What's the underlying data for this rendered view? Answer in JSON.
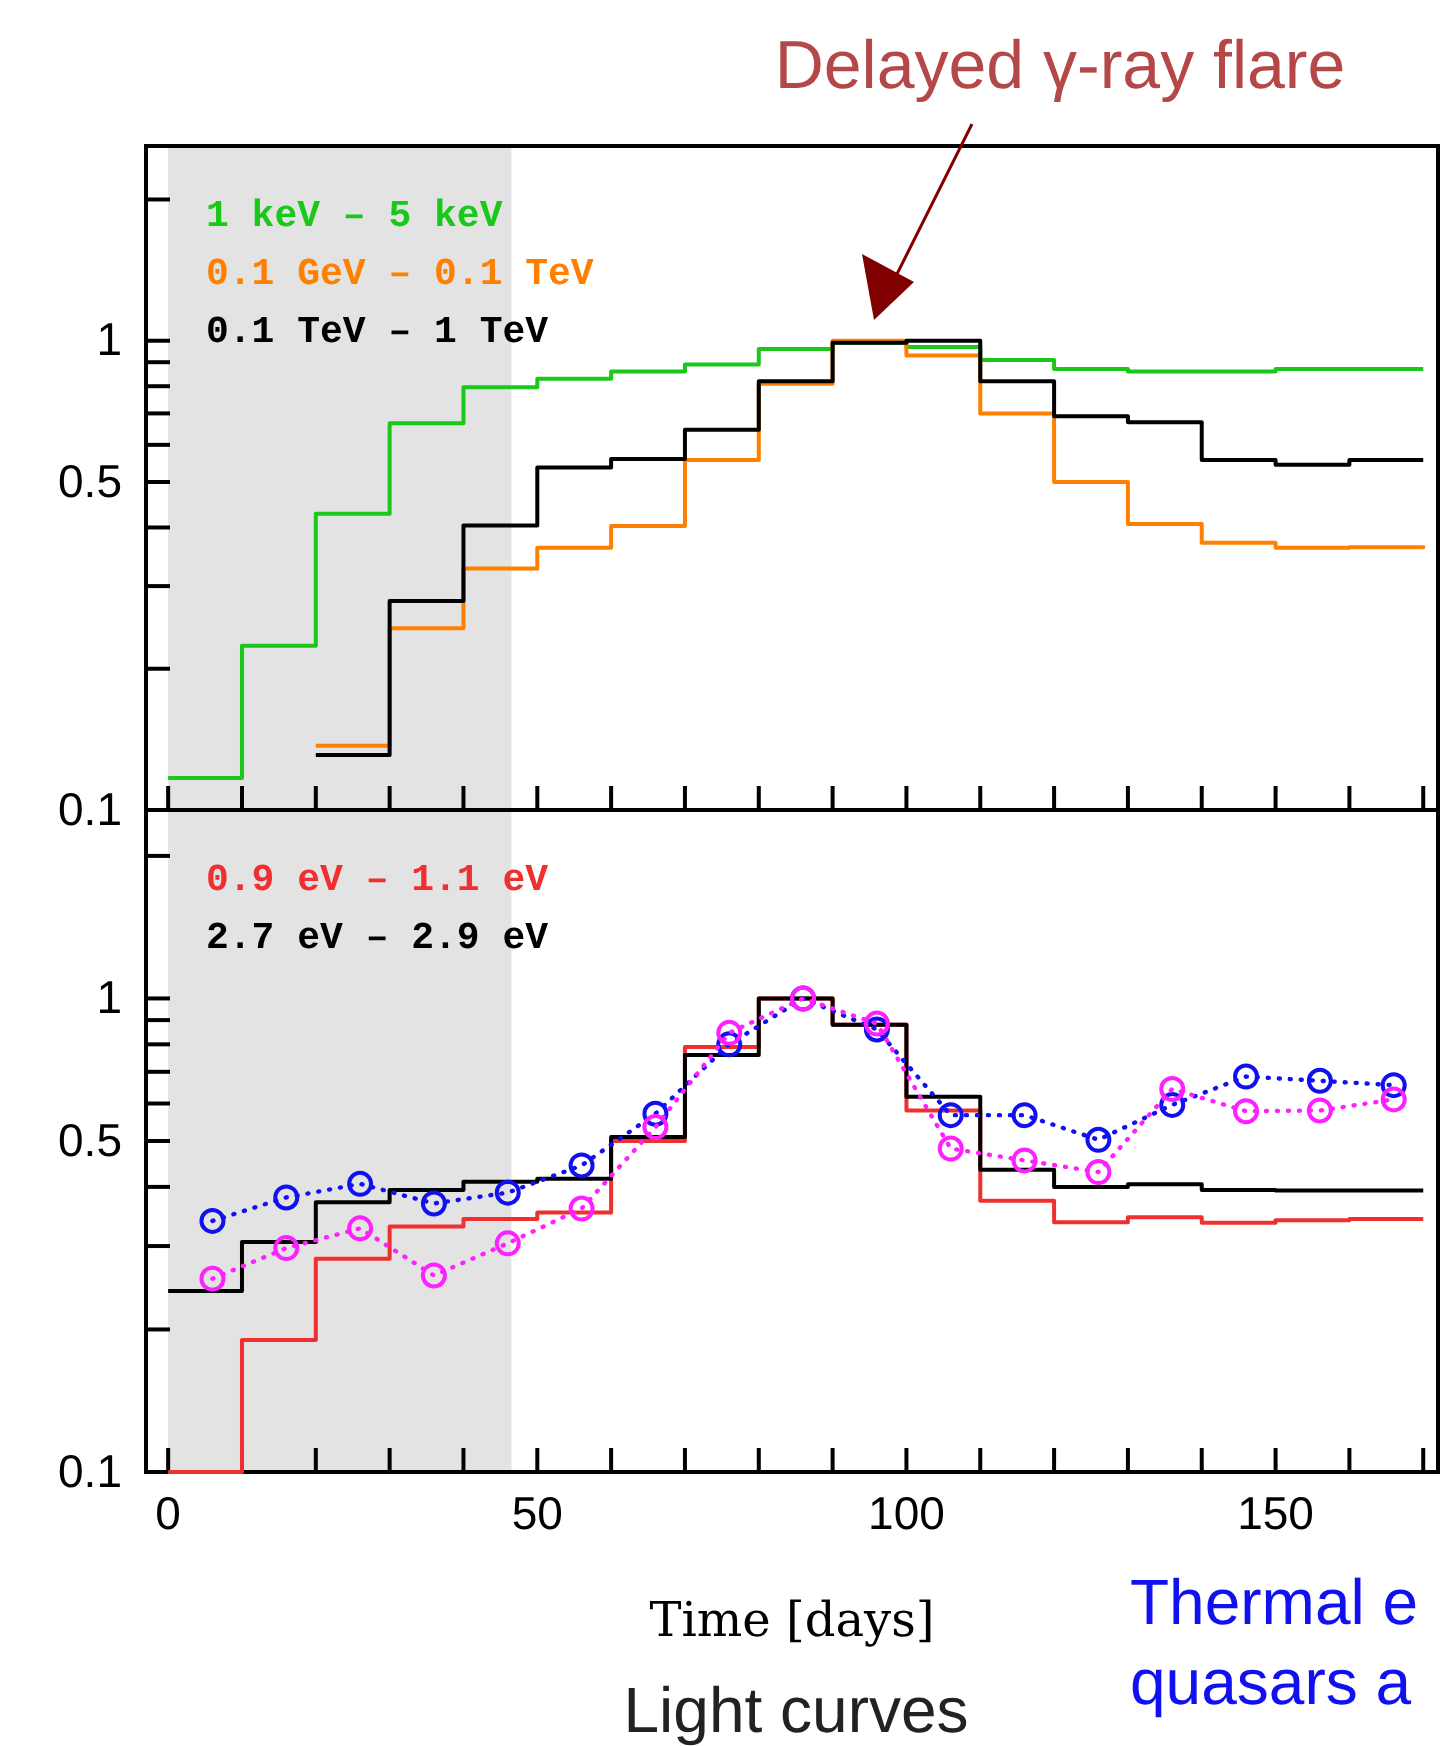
{
  "chart_data": [
    {
      "type": "step",
      "x": [
        0,
        10,
        20,
        30,
        40,
        50,
        60,
        70,
        80,
        90,
        100,
        110,
        120,
        130,
        140,
        150,
        160,
        170
      ],
      "log": "y",
      "legend": "top left",
      "tick_labels": "y",
      "grid": false,
      "series": [
        {
          "name": "1 keV – 5  keV",
          "color": "#19c819",
          "values": [
            0.117,
            0.224,
            0.428,
            0.667,
            0.796,
            0.83,
            0.86,
            0.89,
            0.96,
            0.99,
            0.97,
            0.91,
            0.87,
            0.86,
            0.86,
            0.87,
            0.87,
            0.87
          ]
        },
        {
          "name": "0.1 GeV – 0.1 TeV",
          "color": "#ff8000",
          "values": [
            null,
            null,
            0.137,
            0.244,
            0.327,
            0.362,
            0.403,
            0.557,
            0.81,
            1.0,
            0.93,
            0.7,
            0.5,
            0.407,
            0.371,
            0.362,
            0.363,
            0.366
          ]
        },
        {
          "name": "0.1 TeV – 1 TeV",
          "color": "#000000",
          "values": [
            null,
            null,
            0.131,
            0.279,
            0.404,
            0.537,
            0.56,
            0.646,
            0.82,
            0.99,
            1.0,
            0.82,
            0.69,
            0.67,
            0.557,
            0.544,
            0.557,
            0.557
          ]
        }
      ],
      "xlim": [
        -3,
        172
      ],
      "ylim": [
        0.1,
        2.6
      ],
      "xticks": [
        0,
        {
          "value": 10,
          "label": null
        },
        {
          "value": 20,
          "label": null
        },
        {
          "value": 30,
          "label": null
        },
        {
          "value": 40,
          "label": null
        },
        50,
        {
          "value": 60,
          "label": null
        },
        {
          "value": 70,
          "label": null
        },
        {
          "value": 80,
          "label": null
        },
        {
          "value": 90,
          "label": null
        },
        100,
        {
          "value": 110,
          "label": null
        },
        {
          "value": 120,
          "label": null
        },
        {
          "value": 130,
          "label": null
        },
        {
          "value": 140,
          "label": null
        },
        150,
        {
          "value": 160,
          "label": null
        },
        {
          "value": 170,
          "label": null
        }
      ],
      "yticks": [
        0.1,
        {
          "value": 0.2,
          "label": null
        },
        {
          "value": 0.3,
          "label": null
        },
        {
          "value": 0.4,
          "label": null
        },
        0.5,
        {
          "value": 0.6,
          "label": null
        },
        {
          "value": 0.7,
          "label": null
        },
        {
          "value": 0.8,
          "label": null
        },
        {
          "value": 0.9,
          "label": null
        },
        1,
        {
          "value": 2,
          "label": null
        }
      ],
      "bands": [
        {
          "axis": "x",
          "from": 0,
          "to": 46.5,
          "color": "#e3e3e3"
        }
      ],
      "annotations": [
        "Delayed γ-ray flare"
      ]
    },
    {
      "type": "step",
      "x": [
        0,
        10,
        20,
        30,
        40,
        50,
        60,
        70,
        80,
        90,
        100,
        110,
        120,
        130,
        140,
        150,
        160,
        170
      ],
      "log": "y",
      "legend": "top left",
      "grid": false,
      "xlabel": "Time [days]",
      "series": [
        {
          "name": "0.9 eV – 1.1 eV",
          "color": "#f03030",
          "values": [
            0.1,
            0.19,
            0.282,
            0.33,
            0.342,
            0.353,
            0.5,
            0.79,
            1.0,
            0.88,
            0.58,
            0.374,
            0.337,
            0.345,
            0.336,
            0.34,
            0.342,
            0.342
          ]
        },
        {
          "name": "2.7 eV – 2.9 eV",
          "color": "#000000",
          "values": [
            0.241,
            0.306,
            0.371,
            0.394,
            0.41,
            0.416,
            0.51,
            0.76,
            1.0,
            0.88,
            0.62,
            0.435,
            0.4,
            0.405,
            0.394,
            0.393,
            0.393,
            0.393
          ]
        },
        {
          "type": "line",
          "marker": "circle",
          "line_style": "dotted",
          "color": "#1010f0",
          "x": [
            6,
            16,
            26,
            36,
            46,
            56,
            66,
            76,
            86,
            96,
            106,
            116,
            126,
            136,
            146,
            156,
            166
          ],
          "values": [
            0.339,
            0.38,
            0.406,
            0.369,
            0.389,
            0.444,
            0.571,
            0.8,
            1.0,
            0.86,
            0.567,
            0.567,
            0.503,
            0.596,
            0.684,
            0.67,
            0.656
          ]
        },
        {
          "type": "line",
          "marker": "circle",
          "line_style": "dotted",
          "color": "#ff20ff",
          "x": [
            6,
            16,
            26,
            36,
            46,
            56,
            66,
            76,
            86,
            96,
            106,
            116,
            126,
            136,
            146,
            156,
            166
          ],
          "values": [
            0.256,
            0.297,
            0.327,
            0.26,
            0.304,
            0.36,
            0.535,
            0.846,
            1.0,
            0.885,
            0.482,
            0.455,
            0.43,
            0.644,
            0.578,
            0.58,
            0.612
          ]
        }
      ],
      "xlim": [
        -3,
        172
      ],
      "ylim": [
        0.1,
        2.5
      ],
      "xticks": [
        0,
        {
          "value": 10,
          "label": null
        },
        {
          "value": 20,
          "label": null
        },
        {
          "value": 30,
          "label": null
        },
        {
          "value": 40,
          "label": null
        },
        50,
        {
          "value": 60,
          "label": null
        },
        {
          "value": 70,
          "label": null
        },
        {
          "value": 80,
          "label": null
        },
        {
          "value": 90,
          "label": null
        },
        100,
        {
          "value": 110,
          "label": null
        },
        {
          "value": 120,
          "label": null
        },
        {
          "value": 130,
          "label": null
        },
        {
          "value": 140,
          "label": null
        },
        150,
        {
          "value": 160,
          "label": null
        },
        {
          "value": 170,
          "label": null
        }
      ],
      "yticks": [
        0.1,
        {
          "value": 0.2,
          "label": null
        },
        {
          "value": 0.3,
          "label": null
        },
        {
          "value": 0.4,
          "label": null
        },
        0.5,
        {
          "value": 0.6,
          "label": null
        },
        {
          "value": 0.7,
          "label": null
        },
        {
          "value": 0.8,
          "label": null
        },
        {
          "value": 0.9,
          "label": null
        },
        1,
        {
          "value": 2,
          "label": null
        }
      ],
      "bands": [
        {
          "axis": "x",
          "from": 0,
          "to": 46.5,
          "color": "#e3e3e3"
        }
      ],
      "annotations": [
        "Light curves",
        "Thermal e",
        "quasars a"
      ]
    }
  ]
}
